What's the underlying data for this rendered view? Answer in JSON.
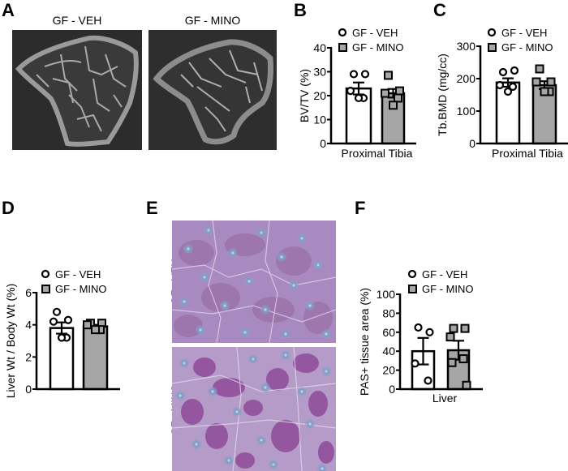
{
  "panels": {
    "A": {
      "letter": "A",
      "images": [
        {
          "title": "GF - VEH"
        },
        {
          "title": "GF - MINO"
        }
      ]
    },
    "B": {
      "letter": "B"
    },
    "C": {
      "letter": "C"
    },
    "D": {
      "letter": "D"
    },
    "E": {
      "letter": "E",
      "images": [
        {
          "label": "GF - VEH"
        },
        {
          "label": "GF - MINO"
        }
      ]
    },
    "F": {
      "letter": "F"
    }
  },
  "legend": {
    "veh": "GF - VEH",
    "mino": "GF - MINO"
  },
  "colors": {
    "veh_fill": "#ffffff",
    "mino_fill": "#a6a6a6",
    "stroke": "#000000",
    "ct_background": "#2c2c2c",
    "histology_base": "#a98ac0",
    "histology_dark": "#8a4f9c",
    "nucleus": "#7c9cc4"
  },
  "chart_data": [
    {
      "panel": "B",
      "type": "bar",
      "title": "",
      "xlabel": "Proximal Tibia",
      "ylabel": "BV/TV (%)",
      "ylim": [
        0,
        40
      ],
      "yticks": [
        0,
        10,
        20,
        30,
        40
      ],
      "categories": [
        "GF - VEH",
        "GF - MINO"
      ],
      "series": [
        {
          "name": "GF - VEH",
          "mean": 23,
          "sem": 2.5,
          "points": [
            29,
            29,
            22,
            19,
            19
          ],
          "marker": "circle"
        },
        {
          "name": "GF - MINO",
          "mean": 21,
          "sem": 1.8,
          "points": [
            28.5,
            22,
            21,
            19,
            16
          ],
          "marker": "square"
        }
      ],
      "legend_position": "top"
    },
    {
      "panel": "C",
      "type": "bar",
      "title": "",
      "xlabel": "Proximal Tibia",
      "ylabel": "Tb.BMD (mg/cc)",
      "ylim": [
        0,
        300
      ],
      "yticks": [
        0,
        100,
        200,
        300
      ],
      "categories": [
        "GF - VEH",
        "GF - MINO"
      ],
      "series": [
        {
          "name": "GF - VEH",
          "mean": 188,
          "sem": 13,
          "points": [
            220,
            225,
            180,
            175,
            160
          ],
          "marker": "circle"
        },
        {
          "name": "GF - MINO",
          "mean": 180,
          "sem": 12,
          "points": [
            230,
            190,
            190,
            160,
            160
          ],
          "marker": "square"
        }
      ],
      "legend_position": "top"
    },
    {
      "panel": "D",
      "type": "bar",
      "title": "",
      "xlabel": "",
      "ylabel": "Liver Wt / Body Wt (%)",
      "ylim": [
        0,
        6
      ],
      "yticks": [
        0,
        2,
        4,
        6
      ],
      "categories": [
        "GF - VEH",
        "GF - MINO"
      ],
      "series": [
        {
          "name": "GF - VEH",
          "mean": 3.8,
          "sem": 0.35,
          "points": [
            4.8,
            4.3,
            4.2,
            3.2,
            3.2
          ],
          "marker": "circle"
        },
        {
          "name": "GF - MINO",
          "mean": 3.9,
          "sem": 0.1,
          "points": [
            4.1,
            4.1,
            4.0,
            3.7,
            3.7
          ],
          "marker": "square"
        }
      ],
      "legend_position": "top"
    },
    {
      "panel": "F",
      "type": "bar",
      "title": "",
      "xlabel": "Liver",
      "ylabel": "PAS+ tissue area (%)",
      "ylim": [
        0,
        100
      ],
      "yticks": [
        0,
        20,
        40,
        60,
        80,
        100
      ],
      "categories": [
        "GF - VEH",
        "GF - MINO"
      ],
      "series": [
        {
          "name": "GF - VEH",
          "mean": 40,
          "sem": 14,
          "points": [
            65,
            60,
            27,
            9
          ],
          "marker": "circle"
        },
        {
          "name": "GF - MINO",
          "mean": 41,
          "sem": 10,
          "points": [
            64,
            64,
            55,
            32,
            28,
            4
          ],
          "marker": "square"
        }
      ],
      "legend_position": "top"
    }
  ]
}
